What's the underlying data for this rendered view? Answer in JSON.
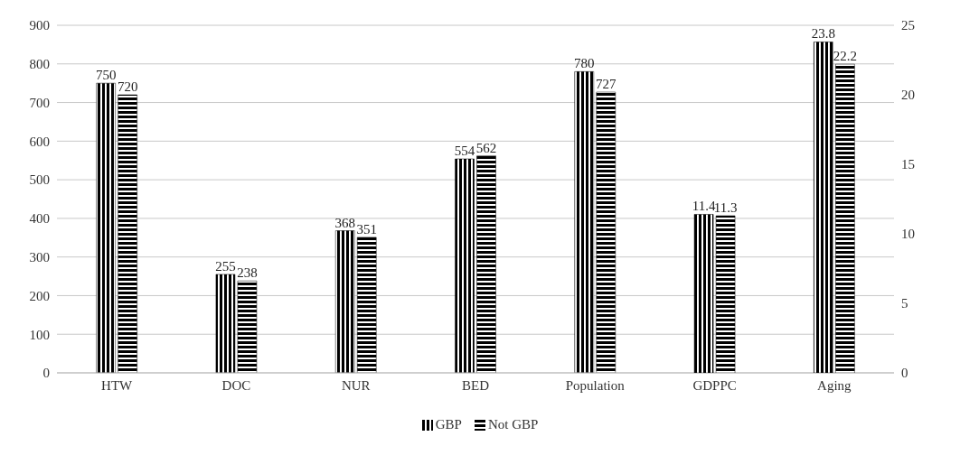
{
  "chart_data": {
    "type": "bar",
    "categories": [
      "HTW",
      "DOC",
      "NUR",
      "BED",
      "Population",
      "GDPPC",
      "Aging"
    ],
    "series": [
      {
        "name": "GBP",
        "color": "#000000",
        "values": [
          750,
          255,
          368,
          554,
          780,
          null,
          null
        ]
      },
      {
        "name": "Not GBP",
        "color": "#000000",
        "values": [
          720,
          238,
          351,
          562,
          727,
          null,
          null
        ]
      },
      {
        "color": "#000000",
        "axis": "y2",
        "values": [
          null,
          null,
          null,
          null,
          null,
          11.4,
          23.8
        ]
      },
      {
        "color": "#000000",
        "axis": "y2",
        "values": [
          null,
          null,
          null,
          null,
          null,
          11.3,
          22.2
        ]
      }
    ],
    "ylim": [
      0,
      900
    ],
    "yticks": [
      0,
      100,
      200,
      300,
      400,
      500,
      600,
      700,
      800,
      900
    ],
    "y2lim": [
      0,
      25
    ],
    "y2ticks": [
      0,
      5,
      10,
      15,
      20,
      25
    ],
    "grid": "y",
    "legend": "bottom",
    "data_labels": true
  }
}
